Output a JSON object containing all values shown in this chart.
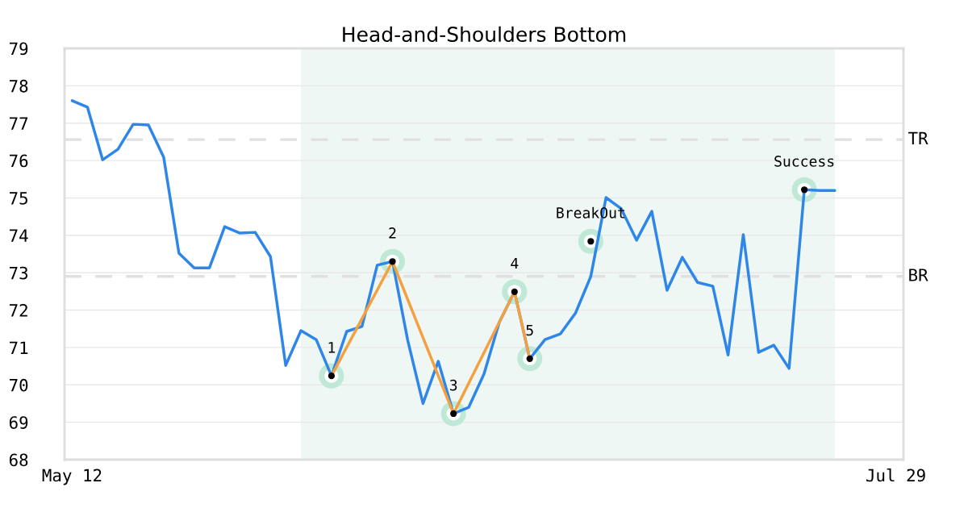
{
  "chart_data": {
    "type": "line",
    "title": "Head-and-Shoulders Bottom",
    "categories": [
      "May 12",
      null,
      null,
      null,
      null,
      null,
      null,
      null,
      null,
      null,
      null,
      null,
      null,
      null,
      null,
      null,
      null,
      null,
      null,
      null,
      null,
      null,
      null,
      null,
      null,
      null,
      null,
      null,
      null,
      null,
      null,
      null,
      null,
      null,
      null,
      null,
      null,
      null,
      null,
      null,
      null,
      null,
      null,
      null,
      null,
      null,
      null,
      null,
      null,
      null,
      null,
      null,
      null,
      null,
      "Jul 29"
    ],
    "ylim": [
      68,
      79
    ],
    "yticks": [
      68,
      69,
      70,
      71,
      72,
      73,
      74,
      75,
      76,
      77,
      78,
      79
    ],
    "grid": "y",
    "legend": false,
    "series": [
      {
        "color": "#2e86e8",
        "values": [
          77.6,
          77.43,
          76.02,
          76.3,
          76.97,
          76.95,
          76.09,
          73.52,
          73.13,
          73.13,
          74.23,
          74.06,
          74.08,
          73.43,
          70.52,
          71.45,
          71.21,
          70.24,
          71.43,
          71.56,
          73.2,
          73.3,
          71.19,
          69.5,
          70.63,
          69.23,
          69.4,
          70.29,
          71.67,
          72.49,
          70.7,
          71.21,
          71.36,
          71.92,
          72.9,
          75.01,
          74.71,
          73.87,
          74.64,
          72.53,
          73.41,
          72.74,
          72.64,
          70.8,
          74.02,
          70.87,
          71.06,
          70.44,
          75.22,
          75.2,
          75.2,
          null,
          null,
          null,
          null
        ]
      },
      {
        "type": "line",
        "color": "#f5a03e",
        "marker": "circle",
        "values": [
          null,
          null,
          null,
          null,
          null,
          null,
          null,
          null,
          null,
          null,
          null,
          null,
          null,
          null,
          null,
          null,
          null,
          70.24,
          null,
          null,
          null,
          73.3,
          null,
          null,
          null,
          69.23,
          null,
          null,
          null,
          72.49,
          70.7,
          null,
          null,
          null,
          null,
          null,
          null,
          null,
          null,
          null,
          null,
          null,
          null,
          null,
          null,
          null,
          null,
          null,
          null,
          null,
          null,
          null,
          null,
          null,
          null
        ]
      },
      {
        "type": "scatter",
        "color": "#000000",
        "marker": "circle",
        "values": [
          null,
          null,
          null,
          null,
          null,
          null,
          null,
          null,
          null,
          null,
          null,
          null,
          null,
          null,
          null,
          null,
          null,
          null,
          null,
          null,
          null,
          null,
          null,
          null,
          null,
          null,
          null,
          null,
          null,
          null,
          null,
          null,
          null,
          null,
          73.84,
          null,
          null,
          null,
          null,
          null,
          null,
          null,
          null,
          null,
          null,
          null,
          null,
          null,
          75.22,
          null,
          null,
          null,
          null,
          null,
          null
        ]
      }
    ],
    "ref_lines": [
      {
        "axis": "y",
        "value": 76.56,
        "label": "TR",
        "color": "#e0e0e0",
        "line_style": "dashed"
      },
      {
        "axis": "y",
        "value": 72.9,
        "label": "BR",
        "color": "#e0e0e0",
        "line_style": "dashed"
      }
    ],
    "annotations": [
      "1",
      "2",
      "3",
      "4",
      "5",
      "BreakOut",
      "Success"
    ]
  }
}
